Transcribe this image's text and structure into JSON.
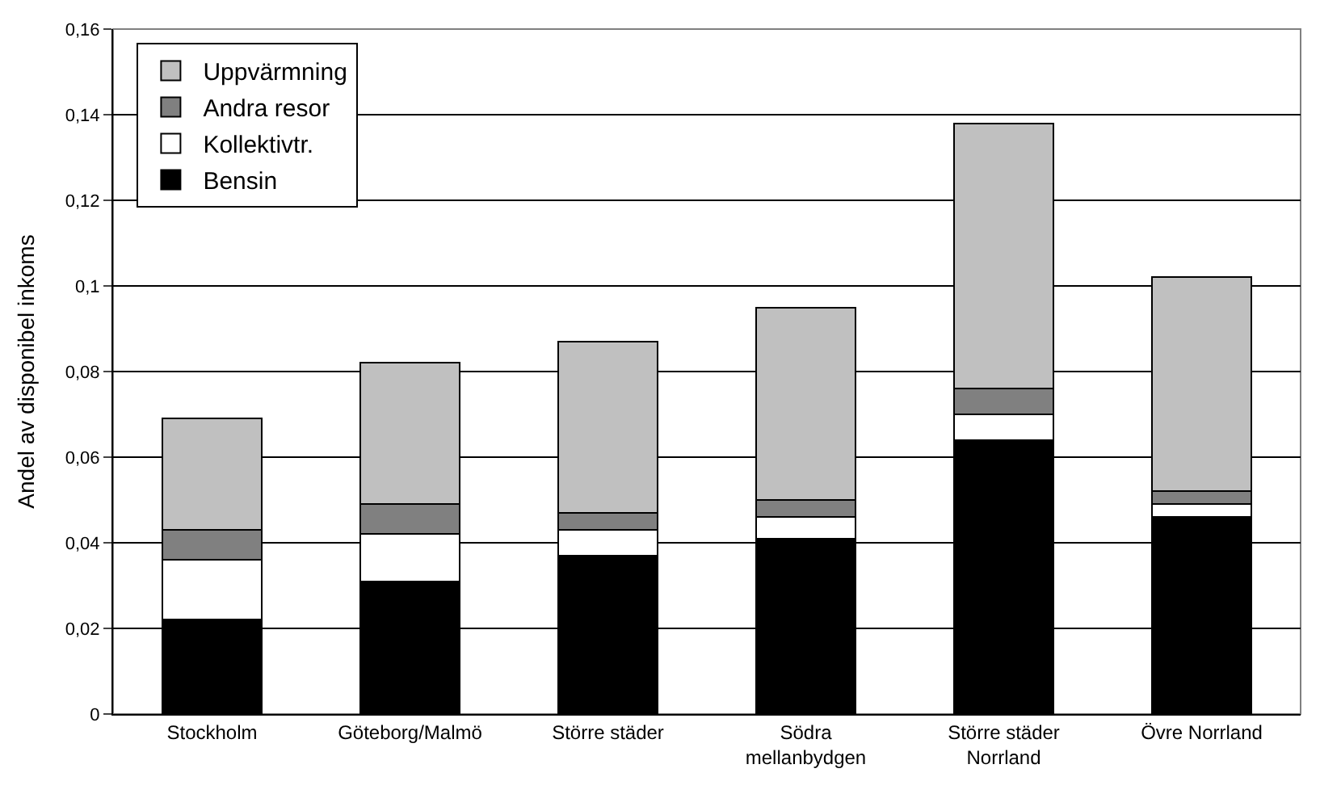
{
  "chart_data": {
    "type": "bar",
    "stacked": true,
    "ylabel": "Andel av disponibel inkoms",
    "categories": [
      "Stockholm",
      "Göteborg/Malmö",
      "Större städer",
      "Södra mellanbydgen",
      "Större städer Norrland",
      "Övre Norrland"
    ],
    "series": [
      {
        "name": "Bensin",
        "color": "#000000",
        "values": [
          0.022,
          0.031,
          0.037,
          0.041,
          0.064,
          0.046
        ]
      },
      {
        "name": "Kollektivtr.",
        "color": "#ffffff",
        "values": [
          0.014,
          0.011,
          0.006,
          0.005,
          0.006,
          0.003
        ]
      },
      {
        "name": "Andra resor",
        "color": "#808080",
        "values": [
          0.007,
          0.007,
          0.004,
          0.004,
          0.006,
          0.003
        ]
      },
      {
        "name": "Uppvärmning",
        "color": "#c0c0c0",
        "values": [
          0.026,
          0.033,
          0.04,
          0.045,
          0.062,
          0.05
        ]
      }
    ],
    "ylim": [
      0,
      0.16
    ],
    "yticks": [
      0,
      {
        "value": 0.02,
        "label": "0,02"
      },
      {
        "value": 0.04,
        "label": "0,04"
      },
      {
        "value": 0.06,
        "label": "0,06"
      },
      {
        "value": 0.08,
        "label": "0,08"
      },
      {
        "value": 0.1,
        "label": "0,1"
      },
      {
        "value": 0.12,
        "label": "0,12"
      },
      {
        "value": 0.14,
        "label": "0,14"
      },
      {
        "value": 0.16,
        "label": "0,16"
      }
    ],
    "grid": "y",
    "legend": "top left"
  }
}
